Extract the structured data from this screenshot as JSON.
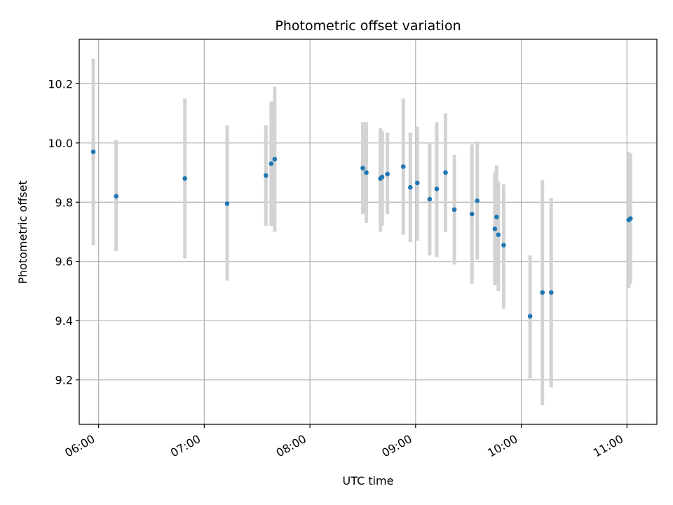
{
  "chart_data": {
    "type": "scatter",
    "title": "Photometric offset variation",
    "xlabel": "UTC time",
    "ylabel": "Photometric offset",
    "x_ticks": [
      "06:00",
      "07:00",
      "08:00",
      "09:00",
      "10:00",
      "11:00"
    ],
    "y_ticks": [
      "9.2",
      "9.4",
      "9.6",
      "9.8",
      "10.0",
      "10.2"
    ],
    "xlim": [
      "05:49",
      "11:17"
    ],
    "ylim": [
      9.05,
      10.35
    ],
    "grid": true,
    "colors": {
      "points": "#1f77b4",
      "errorbars": "#d3d3d3",
      "grid": "#b0b0b0"
    },
    "points": [
      {
        "x": "05:57",
        "y": 9.97,
        "lo": 9.655,
        "hi": 10.285
      },
      {
        "x": "06:10",
        "y": 9.82,
        "lo": 9.635,
        "hi": 10.01
      },
      {
        "x": "06:49",
        "y": 9.88,
        "lo": 9.61,
        "hi": 10.15
      },
      {
        "x": "07:13",
        "y": 9.795,
        "lo": 9.535,
        "hi": 10.06
      },
      {
        "x": "07:35",
        "y": 9.89,
        "lo": 9.72,
        "hi": 10.06
      },
      {
        "x": "07:38",
        "y": 9.93,
        "lo": 9.72,
        "hi": 10.14
      },
      {
        "x": "07:40",
        "y": 9.945,
        "lo": 9.7,
        "hi": 10.19
      },
      {
        "x": "08:30",
        "y": 9.915,
        "lo": 9.76,
        "hi": 10.07
      },
      {
        "x": "08:32",
        "y": 9.9,
        "lo": 9.73,
        "hi": 10.07
      },
      {
        "x": "08:40",
        "y": 9.88,
        "lo": 9.7,
        "hi": 10.05
      },
      {
        "x": "08:41",
        "y": 9.885,
        "lo": 9.72,
        "hi": 10.04
      },
      {
        "x": "08:44",
        "y": 9.895,
        "lo": 9.76,
        "hi": 10.035
      },
      {
        "x": "08:53",
        "y": 9.92,
        "lo": 9.69,
        "hi": 10.15
      },
      {
        "x": "08:57",
        "y": 9.85,
        "lo": 9.665,
        "hi": 10.035
      },
      {
        "x": "09:01",
        "y": 9.865,
        "lo": 9.67,
        "hi": 10.055
      },
      {
        "x": "09:08",
        "y": 9.81,
        "lo": 9.62,
        "hi": 10.0
      },
      {
        "x": "09:12",
        "y": 9.845,
        "lo": 9.615,
        "hi": 10.07
      },
      {
        "x": "09:17",
        "y": 9.9,
        "lo": 9.7,
        "hi": 10.1
      },
      {
        "x": "09:22",
        "y": 9.775,
        "lo": 9.59,
        "hi": 9.96
      },
      {
        "x": "09:32",
        "y": 9.76,
        "lo": 9.525,
        "hi": 9.995
      },
      {
        "x": "09:35",
        "y": 9.805,
        "lo": 9.605,
        "hi": 10.005
      },
      {
        "x": "09:45",
        "y": 9.71,
        "lo": 9.52,
        "hi": 9.9
      },
      {
        "x": "09:46",
        "y": 9.75,
        "lo": 9.575,
        "hi": 9.925
      },
      {
        "x": "09:47",
        "y": 9.69,
        "lo": 9.5,
        "hi": 9.87
      },
      {
        "x": "09:50",
        "y": 9.655,
        "lo": 9.44,
        "hi": 9.86
      },
      {
        "x": "10:05",
        "y": 9.415,
        "lo": 9.205,
        "hi": 9.62
      },
      {
        "x": "10:12",
        "y": 9.495,
        "lo": 9.115,
        "hi": 9.875
      },
      {
        "x": "10:17",
        "y": 9.495,
        "lo": 9.175,
        "hi": 9.815
      },
      {
        "x": "11:01",
        "y": 9.74,
        "lo": 9.51,
        "hi": 9.97
      },
      {
        "x": "11:02",
        "y": 9.745,
        "lo": 9.525,
        "hi": 9.965
      }
    ]
  }
}
